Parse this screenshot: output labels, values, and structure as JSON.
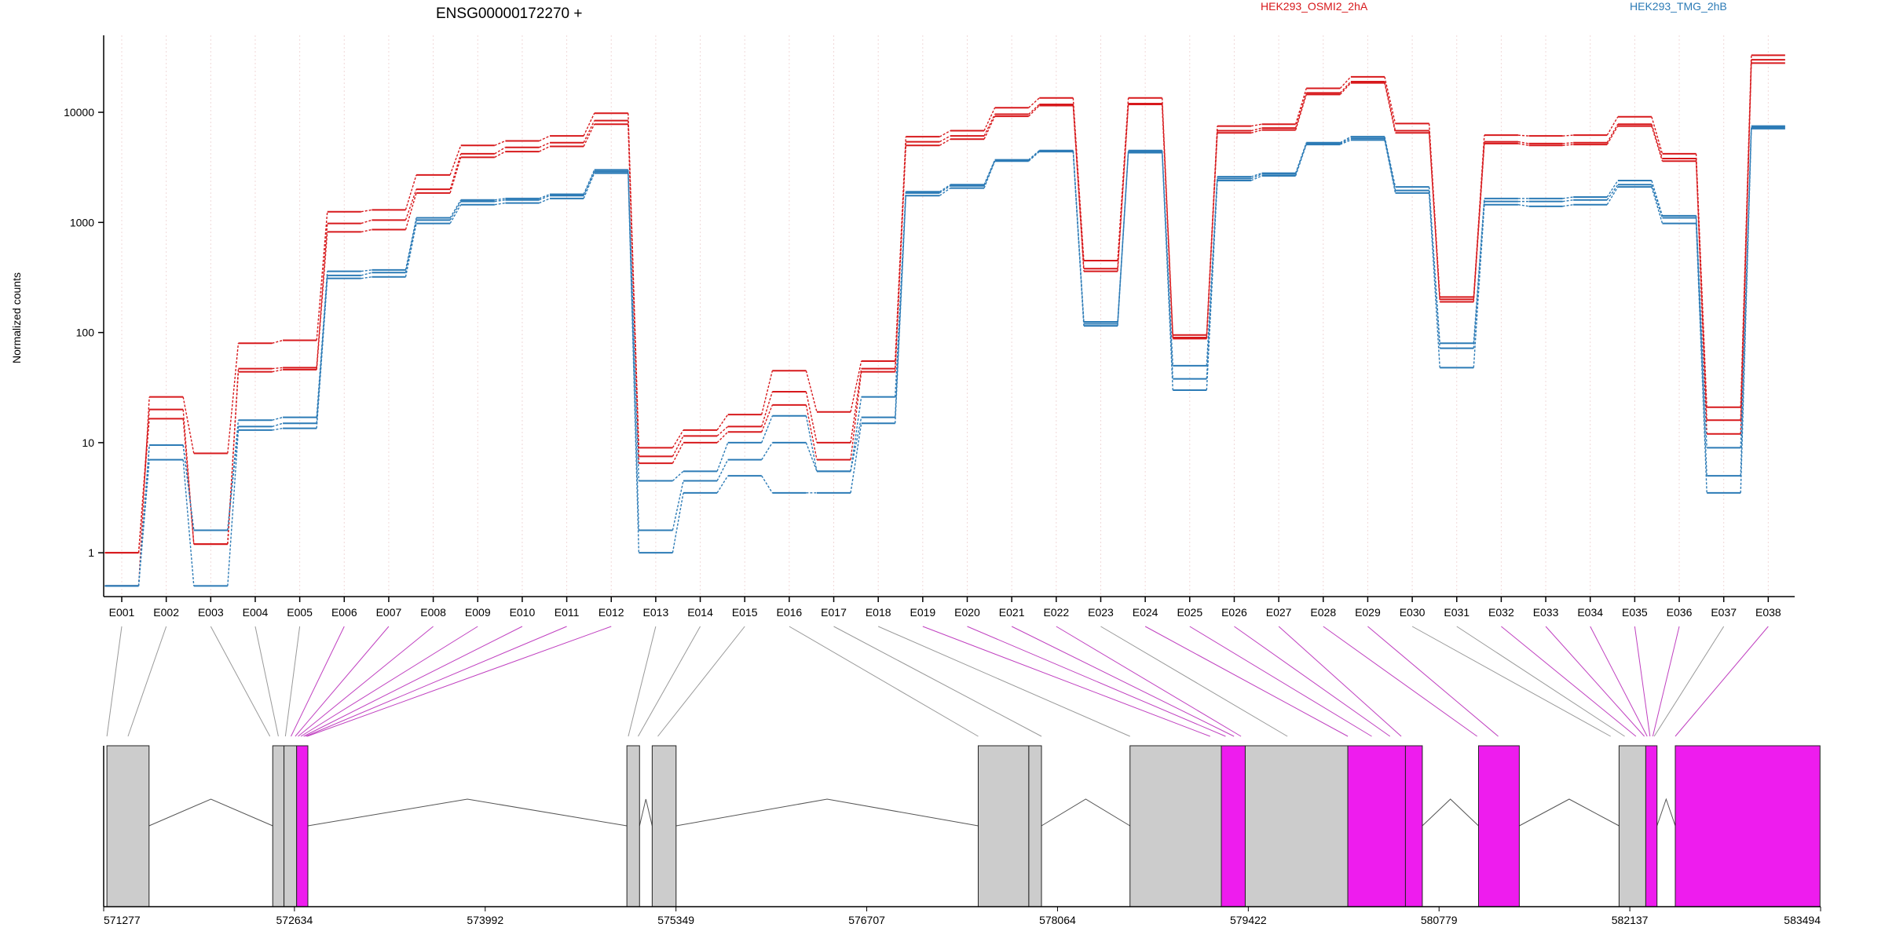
{
  "chart_data": {
    "type": "line",
    "title": "ENSG00000172270 +",
    "ylabel": "Normalized counts",
    "yscale": "log",
    "ylim": [
      0.4,
      50000
    ],
    "ytick_labels": [
      "1",
      "10",
      "100",
      "1000",
      "10000"
    ],
    "yticks": [
      1,
      10,
      100,
      1000,
      10000
    ],
    "categories": [
      "E001",
      "E002",
      "E003",
      "E004",
      "E005",
      "E006",
      "E007",
      "E008",
      "E009",
      "E010",
      "E011",
      "E012",
      "E013",
      "E014",
      "E015",
      "E016",
      "E017",
      "E018",
      "E019",
      "E020",
      "E021",
      "E022",
      "E023",
      "E024",
      "E025",
      "E026",
      "E027",
      "E028",
      "E029",
      "E030",
      "E031",
      "E032",
      "E033",
      "E034",
      "E035",
      "E036",
      "E037",
      "E038"
    ],
    "legend": [
      {
        "label": "HEK293_OSMI2_2hA",
        "color": "#d7191c"
      },
      {
        "label": "HEK293_TMG_2hB",
        "color": "#2c7bb6"
      }
    ],
    "series": [
      {
        "name": "HEK293_OSMI2_2hA",
        "color": "#d7191c",
        "values": [
          0.5,
          26,
          8,
          80,
          85,
          1250,
          1300,
          2700,
          5000,
          5500,
          6100,
          9800,
          9,
          13,
          18,
          45,
          19,
          55,
          6000,
          6800,
          11000,
          13500,
          450,
          13500,
          95,
          7500,
          7800,
          16500,
          21000,
          7900,
          210,
          6200,
          6100,
          6200,
          9100,
          4200,
          21,
          33000
        ]
      },
      {
        "color": "#d7191c",
        "values": [
          1,
          20,
          1.2,
          47,
          48,
          980,
          1050,
          2000,
          4200,
          4800,
          5300,
          8400,
          7.5,
          11.5,
          14,
          29,
          10,
          47,
          5400,
          6100,
          9600,
          11800,
          380,
          12000,
          90,
          6800,
          7200,
          15000,
          19000,
          6800,
          200,
          5400,
          5200,
          5300,
          7800,
          3800,
          16,
          30000
        ]
      },
      {
        "color": "#d7191c",
        "values": [
          1,
          16.5,
          1.2,
          44,
          46,
          820,
          860,
          1850,
          3900,
          4400,
          4900,
          7800,
          6.5,
          10,
          12.5,
          22,
          7,
          44,
          5000,
          5700,
          9200,
          11500,
          360,
          11800,
          88,
          6500,
          6900,
          14500,
          18500,
          6500,
          190,
          5200,
          5000,
          5100,
          7500,
          3600,
          12,
          28000
        ]
      },
      {
        "name": "HEK293_TMG_2hB",
        "color": "#2c7bb6",
        "values": [
          0.5,
          9.5,
          1.6,
          16,
          17,
          360,
          370,
          1100,
          1600,
          1650,
          1800,
          3000,
          4.5,
          5.5,
          10,
          17.5,
          5.5,
          26,
          1900,
          2200,
          3700,
          4500,
          125,
          4500,
          50,
          2600,
          2800,
          5300,
          6000,
          2100,
          80,
          1650,
          1650,
          1700,
          2400,
          1150,
          9,
          7500
        ]
      },
      {
        "color": "#2c7bb6",
        "values": [
          0.5,
          9.5,
          1.6,
          14,
          15,
          330,
          350,
          1050,
          1550,
          1600,
          1750,
          2900,
          1.6,
          4.5,
          7,
          10,
          5.5,
          17,
          1850,
          2150,
          3650,
          4450,
          120,
          4400,
          38,
          2500,
          2750,
          5200,
          5800,
          1950,
          72,
          1550,
          1550,
          1600,
          2200,
          1100,
          5,
          7300
        ]
      },
      {
        "color": "#2c7bb6",
        "values": [
          0.5,
          7,
          0.5,
          13,
          13.5,
          310,
          320,
          980,
          1450,
          1500,
          1650,
          2800,
          1,
          3.5,
          5,
          3.5,
          3.5,
          15,
          1750,
          2050,
          3600,
          4400,
          115,
          4300,
          30,
          2400,
          2650,
          5100,
          5600,
          1850,
          48,
          1450,
          1400,
          1450,
          2100,
          980,
          3.5,
          7100
        ]
      }
    ],
    "gene_axis": {
      "start": 571277,
      "end": 583494,
      "tick_labels": [
        "571277",
        "572634",
        "573992",
        "575349",
        "576707",
        "578064",
        "579422",
        "580779",
        "582137",
        "583494"
      ],
      "exon_blocks": [
        {
          "start": 571300,
          "end": 571600,
          "color": "#cccccc"
        },
        {
          "start": 572480,
          "end": 572560,
          "color": "#cccccc"
        },
        {
          "start": 572560,
          "end": 572650,
          "color": "#cccccc"
        },
        {
          "start": 572650,
          "end": 572730,
          "color": "#ee1cee"
        },
        {
          "start": 575000,
          "end": 575090,
          "color": "#cccccc"
        },
        {
          "start": 575180,
          "end": 575350,
          "color": "#cccccc"
        },
        {
          "start": 577500,
          "end": 577860,
          "color": "#cccccc"
        },
        {
          "start": 577860,
          "end": 577950,
          "color": "#cccccc"
        },
        {
          "start": 578580,
          "end": 579230,
          "color": "#cccccc"
        },
        {
          "start": 579230,
          "end": 579400,
          "color": "#ee1cee"
        },
        {
          "start": 579400,
          "end": 580130,
          "color": "#cccccc"
        },
        {
          "start": 580130,
          "end": 580540,
          "color": "#ee1cee"
        },
        {
          "start": 580540,
          "end": 580660,
          "color": "#ee1cee"
        },
        {
          "start": 581060,
          "end": 581350,
          "color": "#ee1cee"
        },
        {
          "start": 582060,
          "end": 582250,
          "color": "#cccccc"
        },
        {
          "start": 582250,
          "end": 582330,
          "color": "#ee1cee"
        },
        {
          "start": 582460,
          "end": 583490,
          "color": "#ee1cee"
        }
      ],
      "introns": [
        {
          "start": 571600,
          "end": 572480
        },
        {
          "start": 572730,
          "end": 575000
        },
        {
          "start": 575090,
          "end": 575180
        },
        {
          "start": 575350,
          "end": 577500
        },
        {
          "start": 577950,
          "end": 578580
        },
        {
          "start": 580660,
          "end": 581060
        },
        {
          "start": 581350,
          "end": 582060
        },
        {
          "start": 582330,
          "end": 582460
        }
      ],
      "exon_positions": [
        571300,
        571450,
        572460,
        572520,
        572570,
        572610,
        572640,
        572660,
        572680,
        572700,
        572715,
        572725,
        575010,
        575080,
        575220,
        577500,
        577950,
        578580,
        579150,
        579260,
        579320,
        579370,
        579700,
        580130,
        580300,
        580430,
        580510,
        581050,
        581200,
        582000,
        582100,
        582180,
        582240,
        582260,
        582280,
        582300,
        582310,
        582460
      ],
      "exon_link_colors": [
        "#999999",
        "#999999",
        "#999999",
        "#999999",
        "#999999",
        "#c040c0",
        "#c040c0",
        "#c040c0",
        "#c040c0",
        "#c040c0",
        "#c040c0",
        "#c040c0",
        "#999999",
        "#999999",
        "#999999",
        "#999999",
        "#999999",
        "#999999",
        "#c040c0",
        "#c040c0",
        "#c040c0",
        "#c040c0",
        "#999999",
        "#c040c0",
        "#c040c0",
        "#c040c0",
        "#c040c0",
        "#c040c0",
        "#c040c0",
        "#999999",
        "#999999",
        "#c040c0",
        "#c040c0",
        "#c040c0",
        "#c040c0",
        "#c040c0",
        "#999999",
        "#c040c0"
      ]
    }
  }
}
